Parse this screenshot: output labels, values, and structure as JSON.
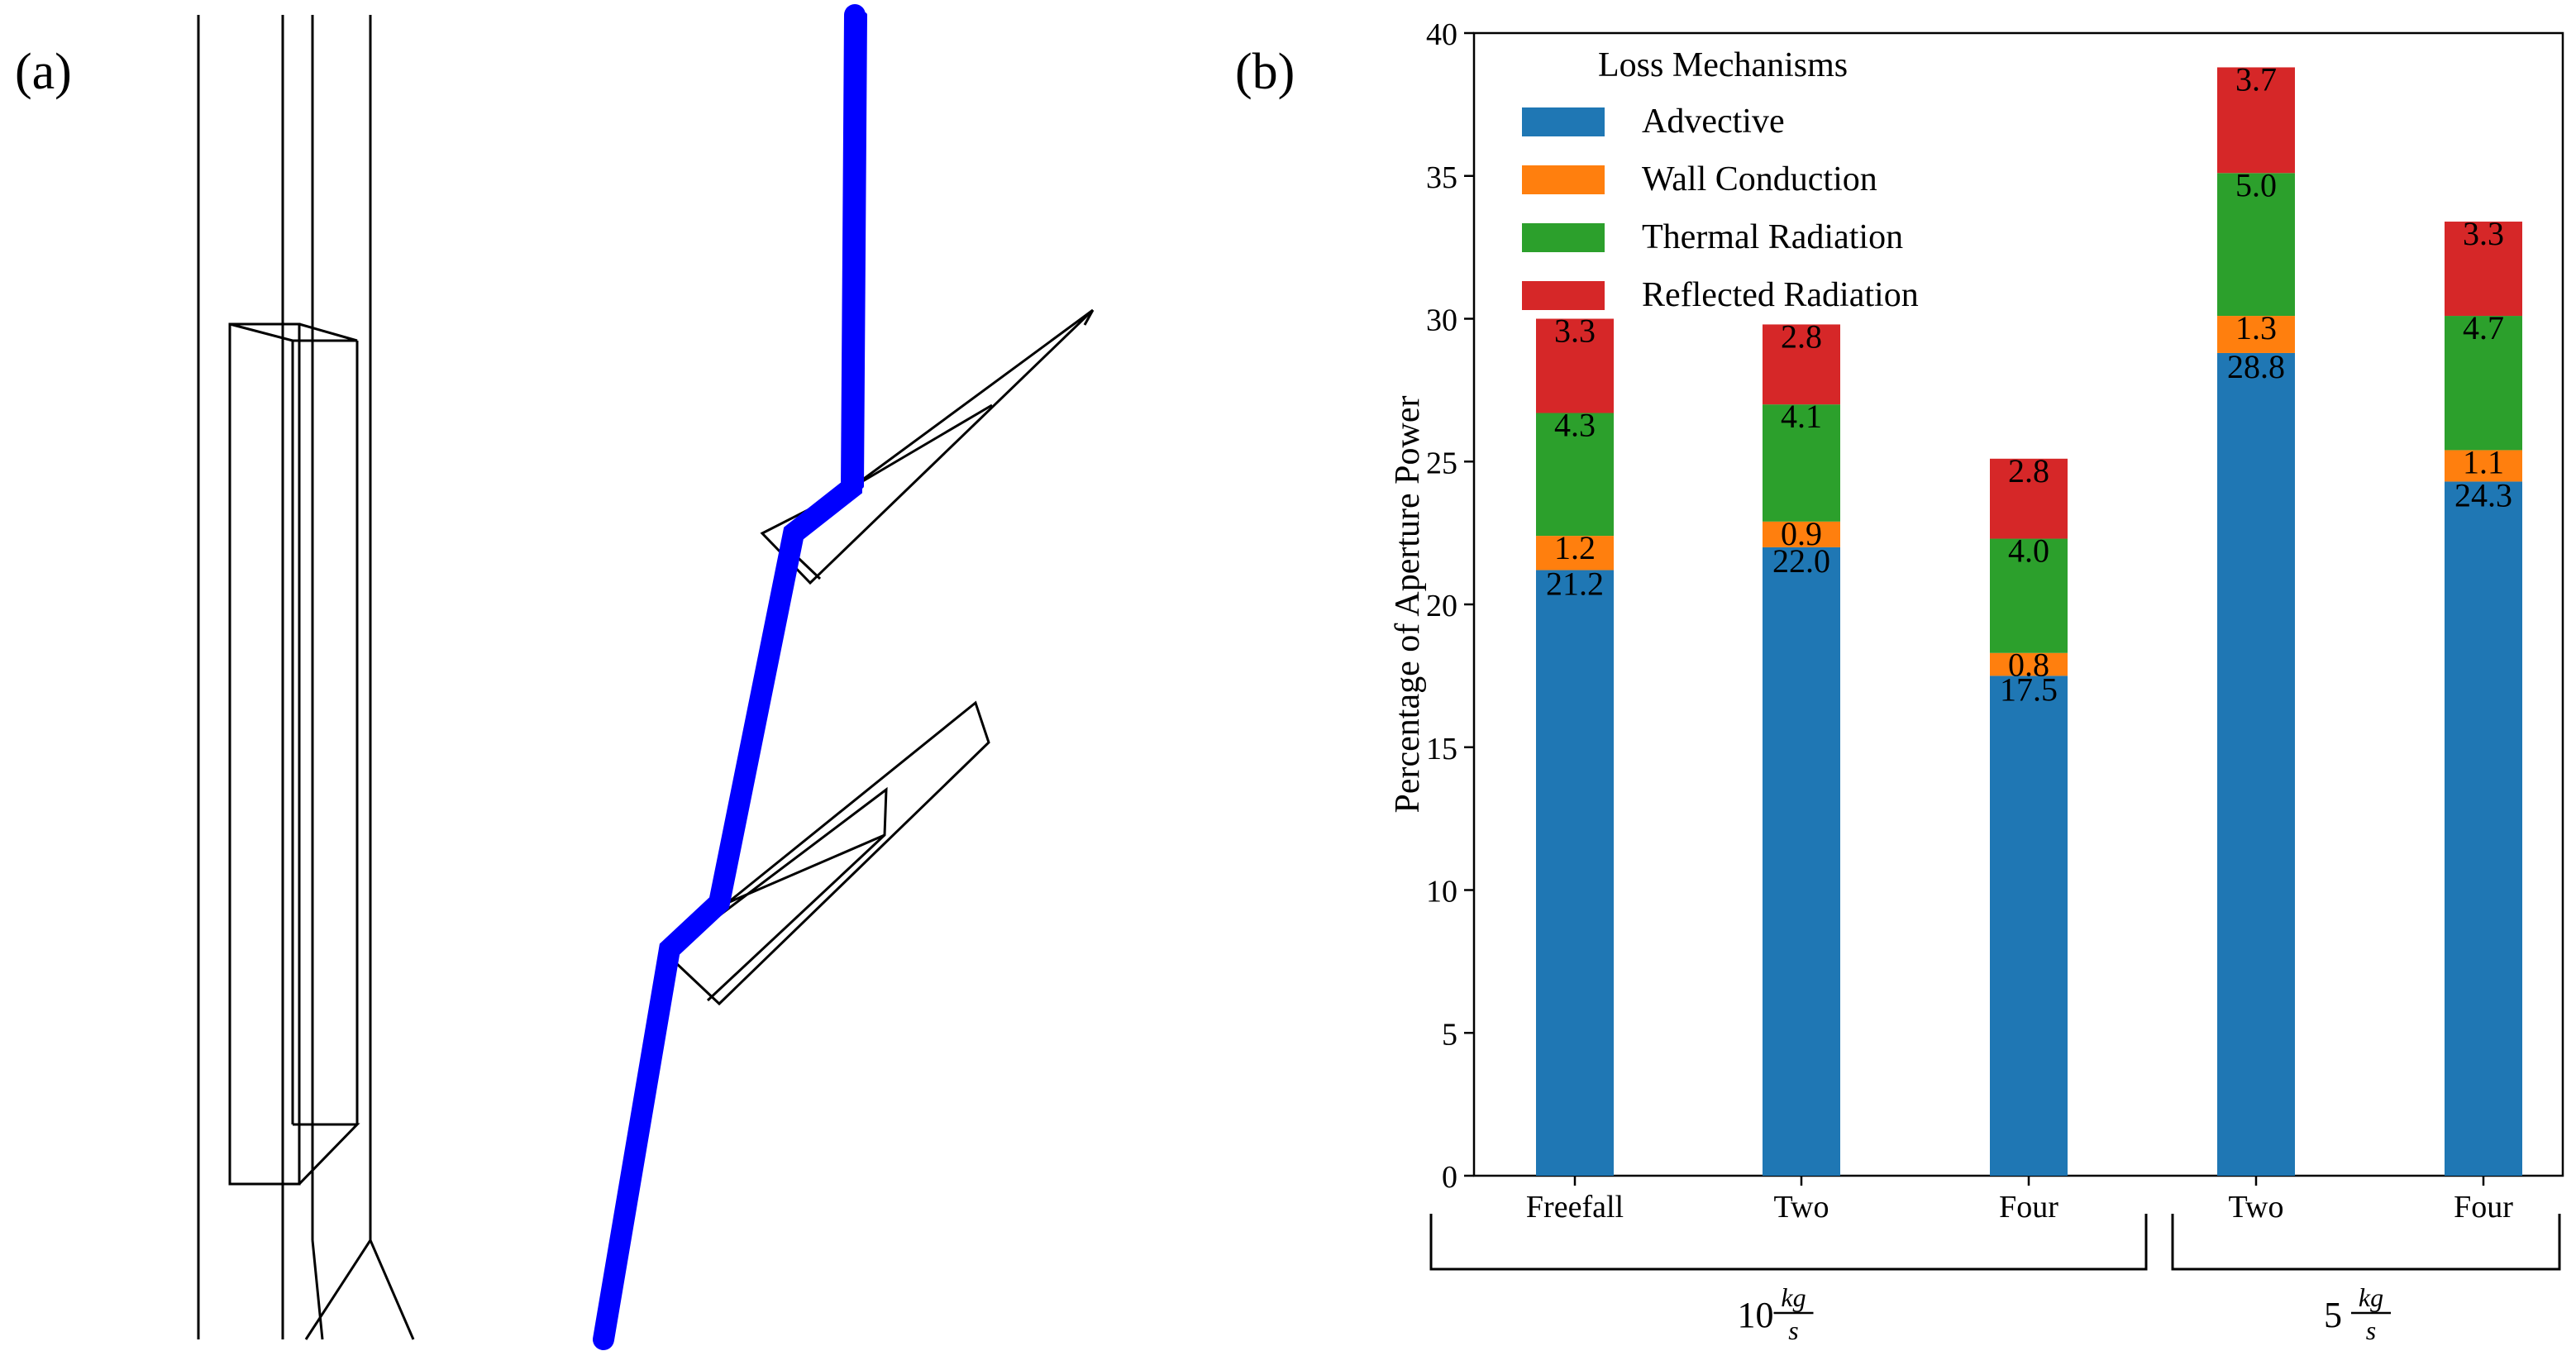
{
  "panels": {
    "a_label": "(a)",
    "b_label": "(b)"
  },
  "colors": {
    "flow": "#0000ff",
    "outline": "#000000"
  },
  "chart_data": {
    "type": "bar",
    "stacked": true,
    "ylabel": "Percentage of Aperture Power",
    "xlabel": "",
    "ylim": [
      0,
      40
    ],
    "yticks": [
      0,
      5,
      10,
      15,
      20,
      25,
      30,
      35,
      40
    ],
    "categories": [
      "Freefall",
      "Two",
      "Four",
      "Two",
      "Four"
    ],
    "legend": {
      "title": "Loss Mechanisms",
      "placement": "top-left"
    },
    "series": [
      {
        "name": "Advective",
        "color": "#1f77b4",
        "values": [
          21.2,
          22.0,
          17.5,
          28.8,
          24.3
        ]
      },
      {
        "name": "Wall Conduction",
        "color": "#ff7f0e",
        "values": [
          1.2,
          0.9,
          0.8,
          1.3,
          1.1
        ]
      },
      {
        "name": "Thermal Radiation",
        "color": "#2ca02c",
        "values": [
          4.3,
          4.1,
          4.0,
          5.0,
          4.7
        ]
      },
      {
        "name": "Reflected Radiation",
        "color": "#d62728",
        "values": [
          3.3,
          2.8,
          2.8,
          3.7,
          3.3
        ]
      }
    ],
    "data_labels": [
      [
        "21.2",
        "22.0",
        "17.5",
        "28.8",
        "24.3"
      ],
      [
        "1.2",
        "0.9",
        "0.8",
        "1.3",
        "1.1"
      ],
      [
        "4.3",
        "4.1",
        "4.0",
        "5.0",
        "4.7"
      ],
      [
        "3.3",
        "2.8",
        "2.8",
        "3.7",
        "3.3"
      ]
    ],
    "groups": [
      {
        "label_num": "10",
        "label_frac_num": "kg",
        "label_frac_den": "s",
        "categories": [
          0,
          1,
          2
        ]
      },
      {
        "label_num": "5",
        "label_frac_num": "kg",
        "label_frac_den": "s",
        "categories": [
          3,
          4
        ]
      }
    ]
  }
}
